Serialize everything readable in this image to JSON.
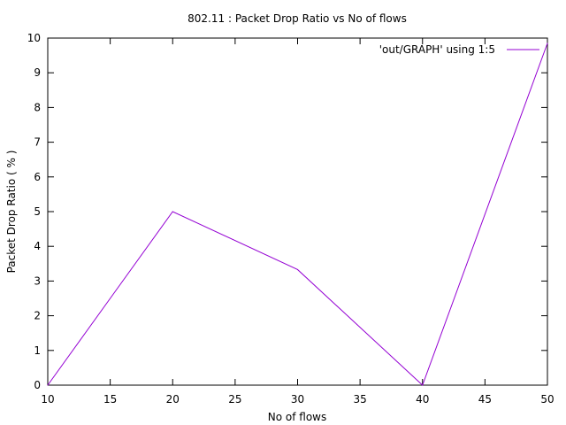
{
  "chart_data": {
    "type": "line",
    "title": "802.11 : Packet Drop Ratio vs No of flows",
    "xlabel": "No of flows",
    "ylabel": "Packet Drop Ratio ( % )",
    "xlim": [
      10,
      50
    ],
    "ylim": [
      0,
      10
    ],
    "xticks": [
      10,
      15,
      20,
      25,
      30,
      35,
      40,
      45,
      50
    ],
    "yticks": [
      0,
      1,
      2,
      3,
      4,
      5,
      6,
      7,
      8,
      9,
      10
    ],
    "grid": false,
    "legend_position": "top-right",
    "series": [
      {
        "name": "'out/GRAPH' using 1:5",
        "color": "#9400d3",
        "x": [
          10,
          20,
          30,
          40,
          50
        ],
        "y": [
          0,
          5,
          3.33,
          0,
          9.85
        ]
      }
    ]
  }
}
